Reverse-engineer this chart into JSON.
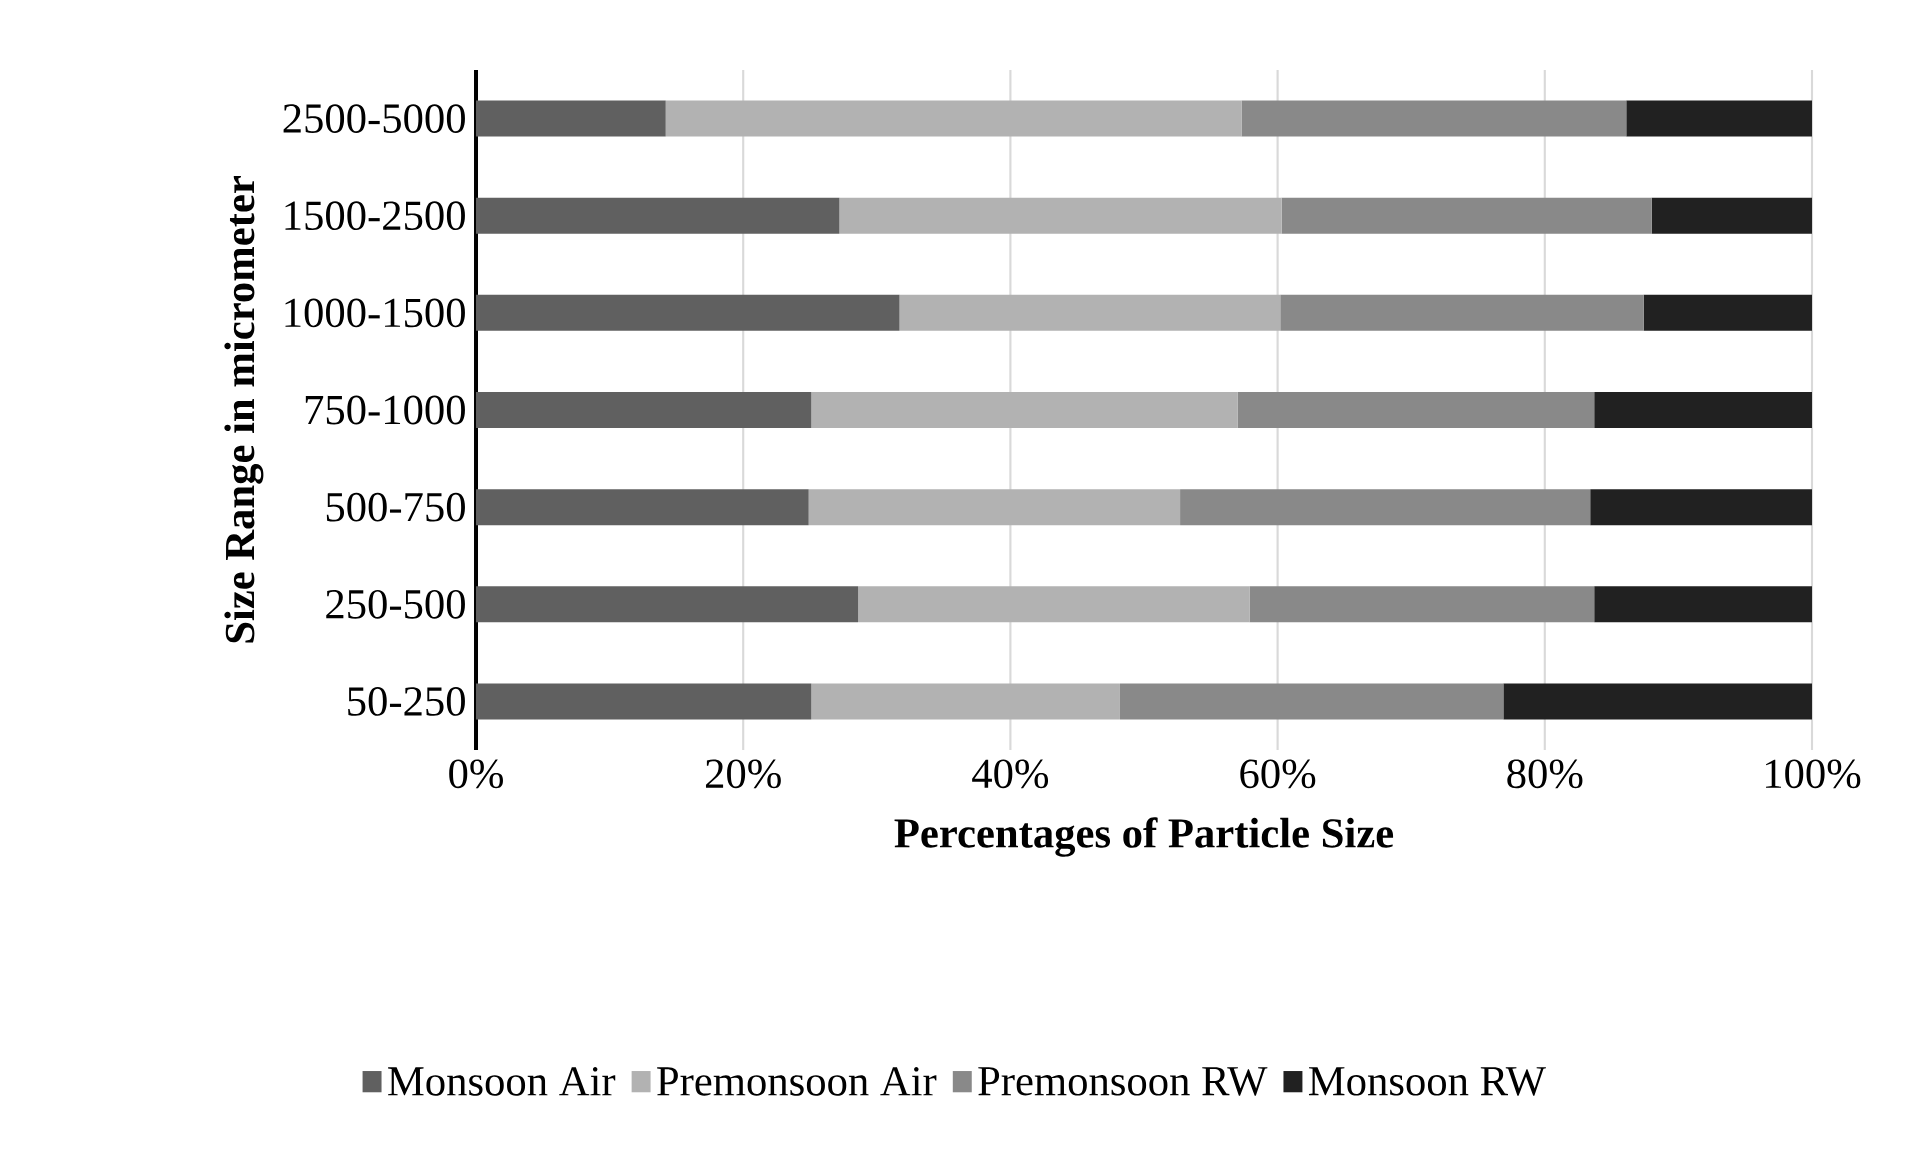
{
  "chart_data": {
    "type": "bar",
    "orientation": "horizontal",
    "stacked": true,
    "xlabel": "Percentages of Particle Size",
    "ylabel": "Size Range in micrometer",
    "categories": [
      "2500-5000",
      "1500-2500",
      "1000-1500",
      "750-1000",
      "500-750",
      "250-500",
      "50-250"
    ],
    "series": [
      {
        "name": "Monsoon Air",
        "color": "#606060",
        "values": [
          14.2,
          27.2,
          31.7,
          25.1,
          24.9,
          28.6,
          25.1
        ]
      },
      {
        "name": "Premonsoon Air",
        "color": "#b2b2b2",
        "values": [
          43.1,
          33.1,
          28.5,
          31.9,
          27.8,
          29.3,
          23.1
        ]
      },
      {
        "name": "Premonsoon RW",
        "color": "#898989",
        "values": [
          28.8,
          27.7,
          27.2,
          26.7,
          30.7,
          25.8,
          28.7
        ]
      },
      {
        "name": "Monsoon RW",
        "color": "#212121",
        "values": [
          13.9,
          12.0,
          12.6,
          16.3,
          16.6,
          16.3,
          23.1
        ]
      }
    ],
    "xlim": [
      0,
      100
    ],
    "xticks": [
      {
        "value": 0,
        "label": "0%"
      },
      {
        "value": 20,
        "label": "20%"
      },
      {
        "value": 40,
        "label": "40%"
      },
      {
        "value": 60,
        "label": "60%"
      },
      {
        "value": 80,
        "label": "80%"
      },
      {
        "value": 100,
        "label": "100%"
      }
    ],
    "grid": "x",
    "legend": "bottom"
  }
}
